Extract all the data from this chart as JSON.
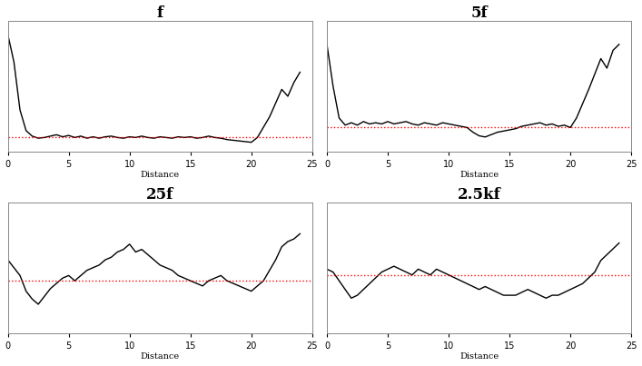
{
  "titles": [
    "f",
    "5f",
    "25f",
    "2.5kf"
  ],
  "xlabel": "Distance",
  "xlim": [
    0,
    25
  ],
  "x_ticks": [
    0,
    5,
    10,
    15,
    20,
    25
  ],
  "background_color": "#ffffff",
  "line_color": "#000000",
  "red_color": "#ff0000",
  "ref_y": 50,
  "panel_f": {
    "x": [
      0,
      0.5,
      1.0,
      1.5,
      2.0,
      2.5,
      3.0,
      3.5,
      4.0,
      4.5,
      5.0,
      5.5,
      6.0,
      6.5,
      7.0,
      7.5,
      8.0,
      8.5,
      9.0,
      9.5,
      10.0,
      10.5,
      11.0,
      11.5,
      12.0,
      12.5,
      13.0,
      13.5,
      14.0,
      14.5,
      15.0,
      15.5,
      16.0,
      16.5,
      17.0,
      17.5,
      18.0,
      18.5,
      19.0,
      19.5,
      20.0,
      20.5,
      21.0,
      21.5,
      22.0,
      22.5,
      23.0,
      23.5,
      24.0
    ],
    "y": [
      200,
      160,
      90,
      60,
      52,
      49,
      50,
      52,
      54,
      51,
      53,
      50,
      52,
      49,
      51,
      49,
      51,
      52,
      50,
      49,
      51,
      50,
      52,
      50,
      49,
      51,
      50,
      49,
      51,
      50,
      51,
      49,
      50,
      52,
      50,
      49,
      47,
      46,
      45,
      44,
      43,
      50,
      65,
      80,
      100,
      120,
      110,
      130,
      145
    ],
    "ylim": [
      30,
      220
    ]
  },
  "panel_5f": {
    "x": [
      0,
      0.5,
      1.0,
      1.5,
      2.0,
      2.5,
      3.0,
      3.5,
      4.0,
      4.5,
      5.0,
      5.5,
      6.0,
      6.5,
      7.0,
      7.5,
      8.0,
      8.5,
      9.0,
      9.5,
      10.0,
      10.5,
      11.0,
      11.5,
      12.0,
      12.5,
      13.0,
      13.5,
      14.0,
      14.5,
      15.0,
      15.5,
      16.0,
      16.5,
      17.0,
      17.5,
      18.0,
      18.5,
      19.0,
      19.5,
      20.0,
      20.5,
      21.0,
      21.5,
      22.0,
      22.5,
      23.0,
      23.5,
      24.0
    ],
    "y": [
      120,
      85,
      58,
      52,
      54,
      52,
      55,
      53,
      54,
      53,
      55,
      53,
      54,
      55,
      53,
      52,
      54,
      53,
      52,
      54,
      53,
      52,
      51,
      50,
      46,
      43,
      42,
      44,
      46,
      47,
      48,
      49,
      51,
      52,
      53,
      54,
      52,
      53,
      51,
      52,
      50,
      58,
      70,
      82,
      95,
      108,
      100,
      115,
      120
    ],
    "ylim": [
      30,
      140
    ]
  },
  "panel_25f": {
    "x": [
      0,
      0.5,
      1.0,
      1.5,
      2.0,
      2.5,
      3.0,
      3.5,
      4.0,
      4.5,
      5.0,
      5.5,
      6.0,
      6.5,
      7.0,
      7.5,
      8.0,
      8.5,
      9.0,
      9.5,
      10.0,
      10.5,
      11.0,
      11.5,
      12.0,
      12.5,
      13.0,
      13.5,
      14.0,
      14.5,
      15.0,
      15.5,
      16.0,
      16.5,
      17.0,
      17.5,
      18.0,
      18.5,
      19.0,
      19.5,
      20.0,
      20.5,
      21.0,
      21.5,
      22.0,
      22.5,
      23.0,
      23.5,
      24.0
    ],
    "y": [
      58,
      55,
      52,
      46,
      43,
      41,
      44,
      47,
      49,
      51,
      52,
      50,
      52,
      54,
      55,
      56,
      58,
      59,
      61,
      62,
      64,
      61,
      62,
      60,
      58,
      56,
      55,
      54,
      52,
      51,
      50,
      49,
      48,
      50,
      51,
      52,
      50,
      49,
      48,
      47,
      46,
      48,
      50,
      54,
      58,
      63,
      65,
      66,
      68
    ],
    "ylim": [
      30,
      80
    ]
  },
  "panel_25kf": {
    "x": [
      0,
      0.5,
      1.0,
      1.5,
      2.0,
      2.5,
      3.0,
      3.5,
      4.0,
      4.5,
      5.0,
      5.5,
      6.0,
      6.5,
      7.0,
      7.5,
      8.0,
      8.5,
      9.0,
      9.5,
      10.0,
      10.5,
      11.0,
      11.5,
      12.0,
      12.5,
      13.0,
      13.5,
      14.0,
      14.5,
      15.0,
      15.5,
      16.0,
      16.5,
      17.0,
      17.5,
      18.0,
      18.5,
      19.0,
      19.5,
      20.0,
      20.5,
      21.0,
      21.5,
      22.0,
      22.5,
      23.0,
      23.5,
      24.0
    ],
    "y": [
      52,
      51,
      48,
      45,
      42,
      43,
      45,
      47,
      49,
      51,
      52,
      53,
      52,
      51,
      50,
      52,
      51,
      50,
      52,
      51,
      50,
      49,
      48,
      47,
      46,
      45,
      46,
      45,
      44,
      43,
      43,
      43,
      44,
      45,
      44,
      43,
      42,
      43,
      43,
      44,
      45,
      46,
      47,
      49,
      51,
      55,
      57,
      59,
      61
    ],
    "ylim": [
      30,
      75
    ]
  }
}
